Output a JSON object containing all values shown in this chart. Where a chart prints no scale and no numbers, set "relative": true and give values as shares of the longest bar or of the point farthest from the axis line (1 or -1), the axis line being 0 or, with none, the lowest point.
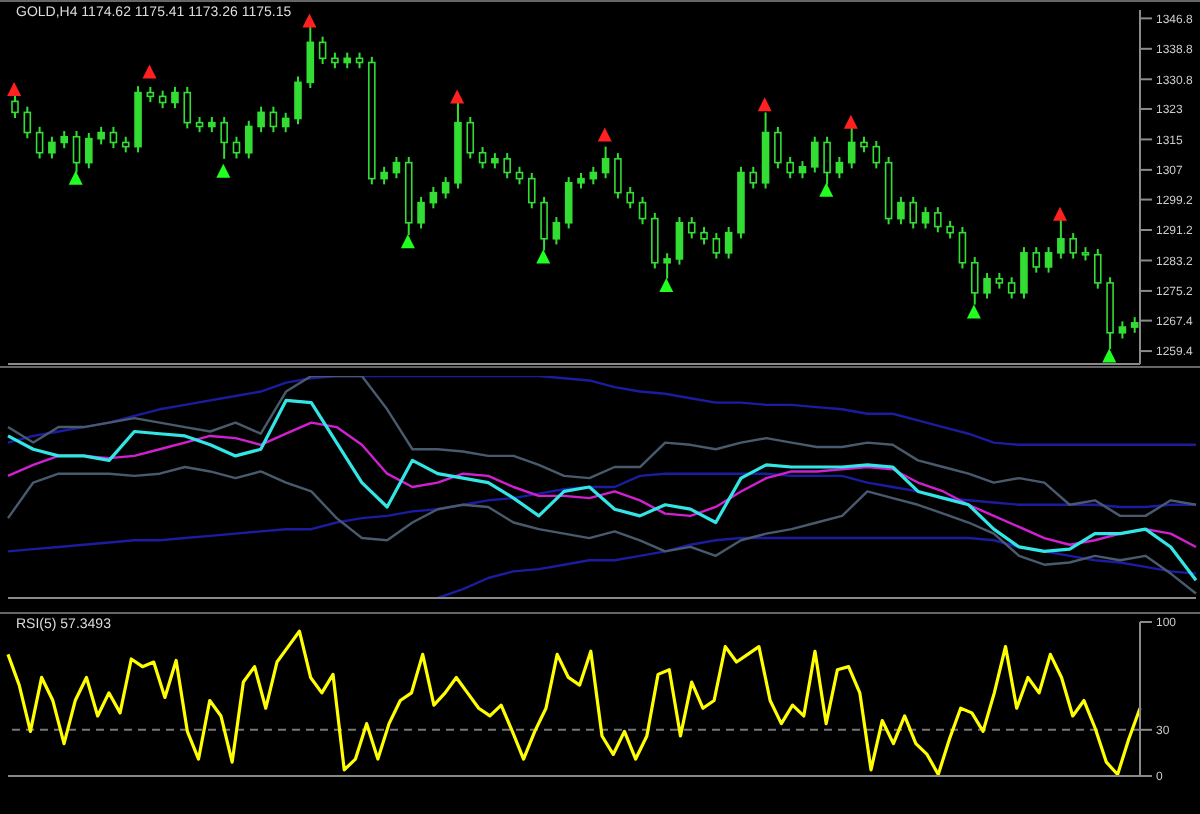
{
  "chart_data": [
    {
      "type": "candlestick",
      "title": "GOLD,H4 1174.62 1175.41 1173.26 1175.15",
      "color": "#33dd33",
      "tick_labels": "y",
      "categories": [
        null,
        null,
        null,
        null,
        null,
        null,
        null,
        null,
        null,
        null,
        null,
        null,
        null,
        null,
        null,
        null,
        null,
        null,
        null,
        null,
        null,
        null,
        null,
        null,
        null,
        null,
        null,
        null,
        null,
        null,
        null,
        null,
        null,
        null,
        null,
        null,
        null,
        null,
        null,
        null,
        null,
        null,
        null,
        null,
        null,
        null,
        null,
        null,
        null,
        null,
        null,
        null,
        null,
        null,
        null,
        null,
        null,
        null,
        null,
        null,
        null,
        null,
        null,
        null,
        null,
        null,
        null,
        null,
        null,
        null,
        null,
        null,
        null,
        null,
        null,
        null,
        null,
        null,
        null,
        null,
        null,
        null,
        null,
        null,
        null,
        null,
        null,
        null,
        null,
        null,
        null,
        null
      ],
      "ylim": [
        1256,
        1349
      ],
      "yticks": [
        1259.4,
        1267.4,
        1275.2,
        1283.2,
        1291.2,
        1299.2,
        1307.0,
        1315.0,
        1323.0,
        1330.8,
        1338.8,
        1346.8
      ],
      "ohlc": [
        [
          1325.0,
          1326.5,
          1320.6,
          1322.1
        ],
        [
          1322.1,
          1323.6,
          1315.3,
          1316.8
        ],
        [
          1316.8,
          1318.3,
          1310.0,
          1311.5
        ],
        [
          1311.5,
          1315.7,
          1310.0,
          1314.2
        ],
        [
          1314.2,
          1317.2,
          1312.7,
          1315.7
        ],
        [
          1315.7,
          1317.2,
          1306.3,
          1308.9
        ],
        [
          1308.9,
          1316.7,
          1307.4,
          1315.2
        ],
        [
          1315.2,
          1318.3,
          1313.7,
          1316.8
        ],
        [
          1316.8,
          1318.3,
          1312.7,
          1314.2
        ],
        [
          1314.2,
          1315.7,
          1311.6,
          1313.1
        ],
        [
          1313.1,
          1329.0,
          1311.6,
          1327.3
        ],
        [
          1327.3,
          1328.8,
          1324.8,
          1326.3
        ],
        [
          1326.3,
          1327.8,
          1323.2,
          1324.7
        ],
        [
          1324.7,
          1328.8,
          1323.2,
          1327.3
        ],
        [
          1327.3,
          1328.8,
          1317.9,
          1319.4
        ],
        [
          1319.4,
          1320.9,
          1316.9,
          1318.4
        ],
        [
          1318.4,
          1320.9,
          1316.9,
          1319.4
        ],
        [
          1319.4,
          1320.9,
          1309.9,
          1314.2
        ],
        [
          1314.2,
          1315.7,
          1310.0,
          1311.5
        ],
        [
          1311.5,
          1319.9,
          1310.0,
          1318.4
        ],
        [
          1318.4,
          1323.6,
          1316.9,
          1322.1
        ],
        [
          1322.1,
          1323.6,
          1316.9,
          1318.4
        ],
        [
          1318.4,
          1322.0,
          1316.9,
          1320.5
        ],
        [
          1320.5,
          1331.5,
          1319.0,
          1330.0
        ],
        [
          1330.0,
          1344.7,
          1328.5,
          1340.5
        ],
        [
          1340.5,
          1342.0,
          1334.8,
          1336.3
        ],
        [
          1336.3,
          1337.8,
          1333.7,
          1335.2
        ],
        [
          1335.2,
          1337.8,
          1333.7,
          1336.3
        ],
        [
          1336.3,
          1337.8,
          1333.7,
          1335.2
        ],
        [
          1335.2,
          1336.7,
          1303.2,
          1304.7
        ],
        [
          1304.7,
          1307.8,
          1303.2,
          1306.3
        ],
        [
          1306.3,
          1310.4,
          1304.8,
          1308.9
        ],
        [
          1308.9,
          1310.4,
          1289.9,
          1293.1
        ],
        [
          1293.1,
          1299.9,
          1291.6,
          1298.4
        ],
        [
          1298.4,
          1302.5,
          1296.9,
          1301.0
        ],
        [
          1301.0,
          1305.1,
          1299.5,
          1303.6
        ],
        [
          1303.6,
          1324.7,
          1302.1,
          1319.4
        ],
        [
          1319.4,
          1320.9,
          1310.0,
          1311.5
        ],
        [
          1311.5,
          1313.0,
          1307.4,
          1308.9
        ],
        [
          1308.9,
          1311.4,
          1307.4,
          1309.9
        ],
        [
          1309.9,
          1311.4,
          1304.8,
          1306.3
        ],
        [
          1306.3,
          1307.8,
          1303.2,
          1304.7
        ],
        [
          1304.7,
          1306.2,
          1296.9,
          1298.4
        ],
        [
          1298.4,
          1299.9,
          1285.8,
          1288.9
        ],
        [
          1288.9,
          1294.6,
          1287.4,
          1293.1
        ],
        [
          1293.1,
          1305.1,
          1291.6,
          1303.6
        ],
        [
          1303.6,
          1306.2,
          1302.1,
          1304.7
        ],
        [
          1304.7,
          1307.8,
          1303.2,
          1306.3
        ],
        [
          1306.3,
          1313.1,
          1304.8,
          1309.9
        ],
        [
          1309.9,
          1311.4,
          1299.5,
          1301.0
        ],
        [
          1301.0,
          1302.5,
          1296.9,
          1298.4
        ],
        [
          1298.4,
          1299.9,
          1292.7,
          1294.2
        ],
        [
          1294.2,
          1295.7,
          1281.1,
          1282.6
        ],
        [
          1282.6,
          1285.1,
          1278.4,
          1283.6
        ],
        [
          1283.6,
          1294.6,
          1282.1,
          1293.1
        ],
        [
          1293.1,
          1294.6,
          1289.0,
          1290.5
        ],
        [
          1290.5,
          1292.0,
          1287.4,
          1288.9
        ],
        [
          1288.9,
          1290.4,
          1283.7,
          1285.2
        ],
        [
          1285.2,
          1292.0,
          1283.7,
          1290.5
        ],
        [
          1290.5,
          1307.8,
          1289.0,
          1306.3
        ],
        [
          1306.3,
          1307.8,
          1302.1,
          1303.6
        ],
        [
          1303.6,
          1322.1,
          1302.1,
          1316.8
        ],
        [
          1316.8,
          1318.3,
          1307.4,
          1308.9
        ],
        [
          1308.9,
          1310.4,
          1304.8,
          1306.3
        ],
        [
          1306.3,
          1309.3,
          1304.8,
          1307.8
        ],
        [
          1307.8,
          1315.7,
          1306.3,
          1314.2
        ],
        [
          1314.2,
          1315.7,
          1303.1,
          1306.3
        ],
        [
          1306.3,
          1310.4,
          1304.8,
          1308.9
        ],
        [
          1308.9,
          1318.4,
          1307.4,
          1314.2
        ],
        [
          1314.2,
          1315.7,
          1311.6,
          1313.1
        ],
        [
          1313.1,
          1314.6,
          1307.4,
          1308.9
        ],
        [
          1308.9,
          1310.4,
          1292.7,
          1294.2
        ],
        [
          1294.2,
          1299.9,
          1292.7,
          1298.4
        ],
        [
          1298.4,
          1299.9,
          1291.6,
          1293.1
        ],
        [
          1293.1,
          1297.2,
          1291.6,
          1295.7
        ],
        [
          1295.7,
          1297.2,
          1290.6,
          1292.1
        ],
        [
          1292.1,
          1293.6,
          1289.0,
          1290.5
        ],
        [
          1290.5,
          1292.0,
          1281.1,
          1282.6
        ],
        [
          1282.6,
          1284.1,
          1271.6,
          1274.7
        ],
        [
          1274.7,
          1279.9,
          1273.2,
          1278.4
        ],
        [
          1278.4,
          1279.9,
          1275.8,
          1277.3
        ],
        [
          1277.3,
          1278.8,
          1273.2,
          1274.7
        ],
        [
          1274.7,
          1286.7,
          1273.2,
          1285.2
        ],
        [
          1285.2,
          1286.7,
          1280.0,
          1281.5
        ],
        [
          1281.5,
          1286.7,
          1280.0,
          1285.2
        ],
        [
          1285.2,
          1294.2,
          1283.7,
          1288.9
        ],
        [
          1288.9,
          1290.4,
          1283.7,
          1285.2
        ],
        [
          1285.2,
          1286.7,
          1283.2,
          1284.7
        ],
        [
          1284.7,
          1286.2,
          1275.8,
          1277.3
        ],
        [
          1277.3,
          1278.8,
          1259.9,
          1264.2
        ],
        [
          1264.2,
          1267.2,
          1262.7,
          1265.7
        ],
        [
          1265.7,
          1268.3,
          1264.2,
          1266.8
        ]
      ],
      "series": [
        {
          "type": "scatter",
          "color": "#ff2020",
          "marker": "triangle",
          "values": [
            1328.0,
            null,
            null,
            null,
            null,
            null,
            null,
            null,
            null,
            null,
            null,
            1332.6,
            null,
            null,
            null,
            null,
            null,
            null,
            null,
            null,
            null,
            null,
            null,
            null,
            1346.0,
            null,
            null,
            null,
            null,
            null,
            null,
            null,
            null,
            null,
            null,
            null,
            1326.0,
            null,
            null,
            null,
            null,
            null,
            null,
            null,
            null,
            null,
            null,
            null,
            1316.0,
            null,
            null,
            null,
            null,
            null,
            null,
            null,
            null,
            null,
            null,
            null,
            null,
            1324.0,
            null,
            null,
            null,
            null,
            null,
            null,
            1319.4,
            null,
            null,
            null,
            null,
            null,
            null,
            null,
            null,
            null,
            null,
            null,
            null,
            null,
            null,
            null,
            null,
            1295.2,
            null,
            null,
            null,
            null,
            null,
            null
          ]
        },
        {
          "type": "scatter",
          "color": "#20ff20",
          "marker": "triangle",
          "values": [
            null,
            null,
            null,
            null,
            null,
            1304.7,
            null,
            null,
            null,
            null,
            null,
            null,
            null,
            null,
            null,
            null,
            null,
            1306.5,
            null,
            null,
            null,
            null,
            null,
            null,
            null,
            null,
            null,
            null,
            null,
            null,
            null,
            null,
            1288.0,
            null,
            null,
            null,
            null,
            null,
            null,
            null,
            null,
            null,
            null,
            1284.0,
            null,
            null,
            null,
            null,
            null,
            null,
            null,
            null,
            null,
            1276.5,
            null,
            null,
            null,
            null,
            null,
            null,
            null,
            null,
            null,
            null,
            null,
            null,
            1301.5,
            null,
            null,
            null,
            null,
            null,
            null,
            null,
            null,
            null,
            null,
            null,
            1269.5,
            null,
            null,
            null,
            null,
            null,
            null,
            null,
            null,
            null,
            null,
            1258.0,
            null,
            null
          ]
        }
      ]
    },
    {
      "type": "line",
      "relative": true,
      "tick_labels": false,
      "categories": [
        null,
        null,
        null,
        null,
        null,
        null,
        null,
        null,
        null,
        null,
        null,
        null,
        null,
        null,
        null,
        null,
        null,
        null,
        null,
        null,
        null,
        null,
        null,
        null,
        null,
        null,
        null,
        null,
        null,
        null,
        null,
        null,
        null,
        null,
        null,
        null,
        null,
        null,
        null,
        null,
        null,
        null,
        null,
        null,
        null,
        null,
        null,
        null
      ],
      "series": [
        {
          "color": "#1c1ca0",
          "values": [
            0.7,
            0.73,
            0.75,
            0.77,
            0.79,
            0.82,
            0.85,
            0.87,
            0.89,
            0.91,
            0.93,
            0.97,
            0.99,
            1,
            1,
            1,
            1,
            1,
            1,
            1,
            1,
            1,
            0.99,
            0.98,
            0.95,
            0.93,
            0.92,
            0.9,
            0.88,
            0.88,
            0.87,
            0.87,
            0.86,
            0.85,
            0.83,
            0.83,
            0.8,
            0.77,
            0.74,
            0.7,
            0.69,
            0.69,
            0.69,
            0.69,
            0.69,
            0.69,
            0.69,
            0.69
          ]
        },
        {
          "color": "#1c1ca0",
          "values": [
            0.21,
            0.22,
            0.23,
            0.24,
            0.25,
            0.26,
            0.26,
            0.27,
            0.28,
            0.29,
            0.3,
            0.31,
            0.31,
            0.34,
            0.36,
            0.37,
            0.39,
            0.4,
            0.42,
            0.44,
            0.45,
            0.47,
            0.49,
            0.5,
            0.5,
            0.55,
            0.56,
            0.56,
            0.56,
            0.56,
            0.56,
            0.55,
            0.55,
            0.55,
            0.52,
            0.5,
            0.48,
            0.45,
            0.44,
            0.43,
            0.42,
            0.42,
            0.42,
            0.42,
            0.41,
            0.41,
            0.42,
            0.42
          ]
        },
        {
          "color": "#1c1ca0",
          "values": [
            null,
            null,
            null,
            null,
            null,
            null,
            null,
            null,
            null,
            null,
            null,
            null,
            null,
            null,
            null,
            null,
            null,
            0,
            0.04,
            0.09,
            0.12,
            0.13,
            0.15,
            0.17,
            0.17,
            0.19,
            0.21,
            0.24,
            0.26,
            0.27,
            0.27,
            0.27,
            0.27,
            0.27,
            0.27,
            0.27,
            0.27,
            0.27,
            0.27,
            0.26,
            0.23,
            0.21,
            0.19,
            0.17,
            0.16,
            0.14,
            0.12,
            0.11
          ]
        },
        {
          "color": "#4a5a6e",
          "values": [
            0.77,
            0.7,
            0.77,
            0.77,
            0.79,
            0.81,
            0.79,
            0.77,
            0.75,
            0.79,
            0.74,
            0.93,
            1,
            1,
            1,
            0.85,
            0.67,
            0.67,
            0.66,
            0.64,
            0.64,
            0.6,
            0.55,
            0.54,
            0.59,
            0.59,
            0.7,
            0.69,
            0.67,
            0.7,
            0.72,
            0.7,
            0.68,
            0.68,
            0.7,
            0.69,
            0.62,
            0.59,
            0.56,
            0.52,
            0.54,
            0.52,
            0.42,
            0.44,
            0.37,
            0.37,
            0.44,
            0.42
          ]
        },
        {
          "color": "#4a5a6e",
          "values": [
            0.36,
            0.52,
            0.56,
            0.56,
            0.56,
            0.55,
            0.56,
            0.59,
            0.57,
            0.54,
            0.57,
            0.52,
            0.48,
            0.36,
            0.27,
            0.26,
            0.34,
            0.4,
            0.42,
            0.41,
            0.34,
            0.31,
            0.29,
            0.27,
            0.3,
            0.26,
            0.21,
            0.23,
            0.19,
            0.26,
            0.29,
            0.31,
            0.34,
            0.37,
            0.48,
            0.45,
            0.42,
            0.38,
            0.34,
            0.29,
            0.19,
            0.15,
            0.16,
            0.19,
            0.17,
            0.19,
            0.11,
            0.02
          ]
        },
        {
          "color": "#d020d0",
          "values": [
            0.55,
            0.6,
            0.64,
            0.64,
            0.63,
            0.64,
            0.67,
            0.7,
            0.73,
            0.72,
            0.69,
            0.74,
            0.79,
            0.77,
            0.69,
            0.56,
            0.5,
            0.52,
            0.56,
            0.55,
            0.5,
            0.46,
            0.46,
            0.45,
            0.48,
            0.44,
            0.38,
            0.37,
            0.41,
            0.48,
            0.54,
            0.57,
            0.57,
            0.58,
            0.59,
            0.58,
            0.52,
            0.48,
            0.42,
            0.37,
            0.32,
            0.27,
            0.24,
            0.26,
            0.29,
            0.31,
            0.29,
            0.23
          ]
        },
        {
          "color": "#33e6e6",
          "values": [
            0.73,
            0.67,
            0.64,
            0.64,
            0.62,
            0.75,
            0.74,
            0.73,
            0.69,
            0.64,
            0.67,
            0.89,
            0.88,
            0.7,
            0.52,
            0.41,
            0.62,
            0.56,
            0.54,
            0.52,
            0.45,
            0.37,
            0.48,
            0.5,
            0.4,
            0.37,
            0.42,
            0.4,
            0.34,
            0.54,
            0.6,
            0.59,
            0.59,
            0.59,
            0.6,
            0.59,
            0.48,
            0.45,
            0.42,
            0.31,
            0.23,
            0.21,
            0.22,
            0.29,
            0.29,
            0.31,
            0.23,
            0.08
          ]
        }
      ]
    },
    {
      "type": "line",
      "title": "RSI(5) 57.3493",
      "tick_labels": "y",
      "color": "#ffff00",
      "ylim": [
        0,
        100
      ],
      "yticks": [
        0,
        30,
        100
      ],
      "ref_lines": [
        {
          "axis": "y",
          "value": 30,
          "line_style": "dashed",
          "color": "#777777"
        }
      ],
      "categories": [
        null,
        null,
        null,
        null,
        null,
        null,
        null,
        null,
        null,
        null,
        null,
        null,
        null,
        null,
        null,
        null,
        null,
        null,
        null,
        null,
        null,
        null,
        null,
        null,
        null,
        null,
        null,
        null,
        null,
        null,
        null,
        null,
        null,
        null,
        null,
        null,
        null,
        null,
        null,
        null,
        null,
        null,
        null,
        null,
        null,
        null,
        null,
        null,
        null,
        null,
        null,
        null,
        null,
        null,
        null,
        null,
        null,
        null,
        null,
        null,
        null,
        null,
        null,
        null,
        null,
        null,
        null,
        null,
        null,
        null,
        null,
        null,
        null,
        null,
        null,
        null,
        null,
        null,
        null,
        null,
        null,
        null,
        null,
        null,
        null,
        null,
        null,
        null,
        null,
        null,
        null,
        null,
        null,
        null,
        null,
        null,
        null,
        null,
        null,
        null,
        null,
        null
      ],
      "values": [
        79,
        59,
        29,
        64,
        49,
        21,
        49,
        64,
        39,
        54,
        41,
        76,
        71,
        74,
        51,
        75,
        29,
        11,
        49,
        39,
        9,
        61,
        71,
        44,
        74,
        84,
        94,
        64,
        54,
        66,
        4,
        11,
        34,
        11,
        34,
        49,
        54,
        79,
        46,
        54,
        64,
        54,
        44,
        39,
        46,
        29,
        11,
        29,
        44,
        79,
        64,
        59,
        81,
        26,
        14,
        29,
        11,
        26,
        66,
        69,
        26,
        61,
        44,
        49,
        84,
        74,
        79,
        84,
        49,
        34,
        46,
        39,
        81,
        34,
        69,
        71,
        54,
        4,
        36,
        21,
        39,
        21,
        14,
        1,
        24,
        44,
        41,
        29,
        54,
        84,
        44,
        64,
        54,
        79,
        64,
        39,
        49,
        31,
        9,
        1,
        24,
        44
      ]
    }
  ]
}
